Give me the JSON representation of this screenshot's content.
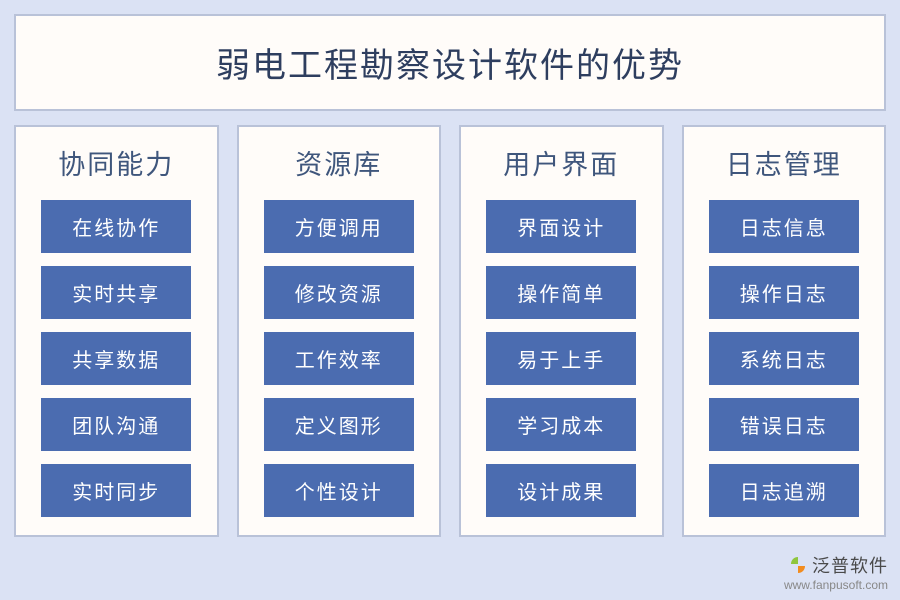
{
  "layout": {
    "canvas_bg": "#dbe2f4",
    "panel_bg": "#fffcf9",
    "border_color": "#b9c2d8",
    "title_color": "#2e3e5f",
    "col_title_color": "#3f567c",
    "item_bg": "#4b6cb0",
    "item_text": "#ffffff"
  },
  "title": "弱电工程勘察设计软件的优势",
  "columns": [
    {
      "title": "协同能力",
      "items": [
        "在线协作",
        "实时共享",
        "共享数据",
        "团队沟通",
        "实时同步"
      ]
    },
    {
      "title": "资源库",
      "items": [
        "方便调用",
        "修改资源",
        "工作效率",
        "定义图形",
        "个性设计"
      ]
    },
    {
      "title": "用户界面",
      "items": [
        "界面设计",
        "操作简单",
        "易于上手",
        "学习成本",
        "设计成果"
      ]
    },
    {
      "title": "日志管理",
      "items": [
        "日志信息",
        "操作日志",
        "系统日志",
        "错误日志",
        "日志追溯"
      ]
    }
  ],
  "watermark": {
    "text": "泛普软件",
    "url": "www.fanpusoft.com",
    "logo_colors": {
      "top": "#8fc63d",
      "bottom": "#f28c1f"
    }
  }
}
